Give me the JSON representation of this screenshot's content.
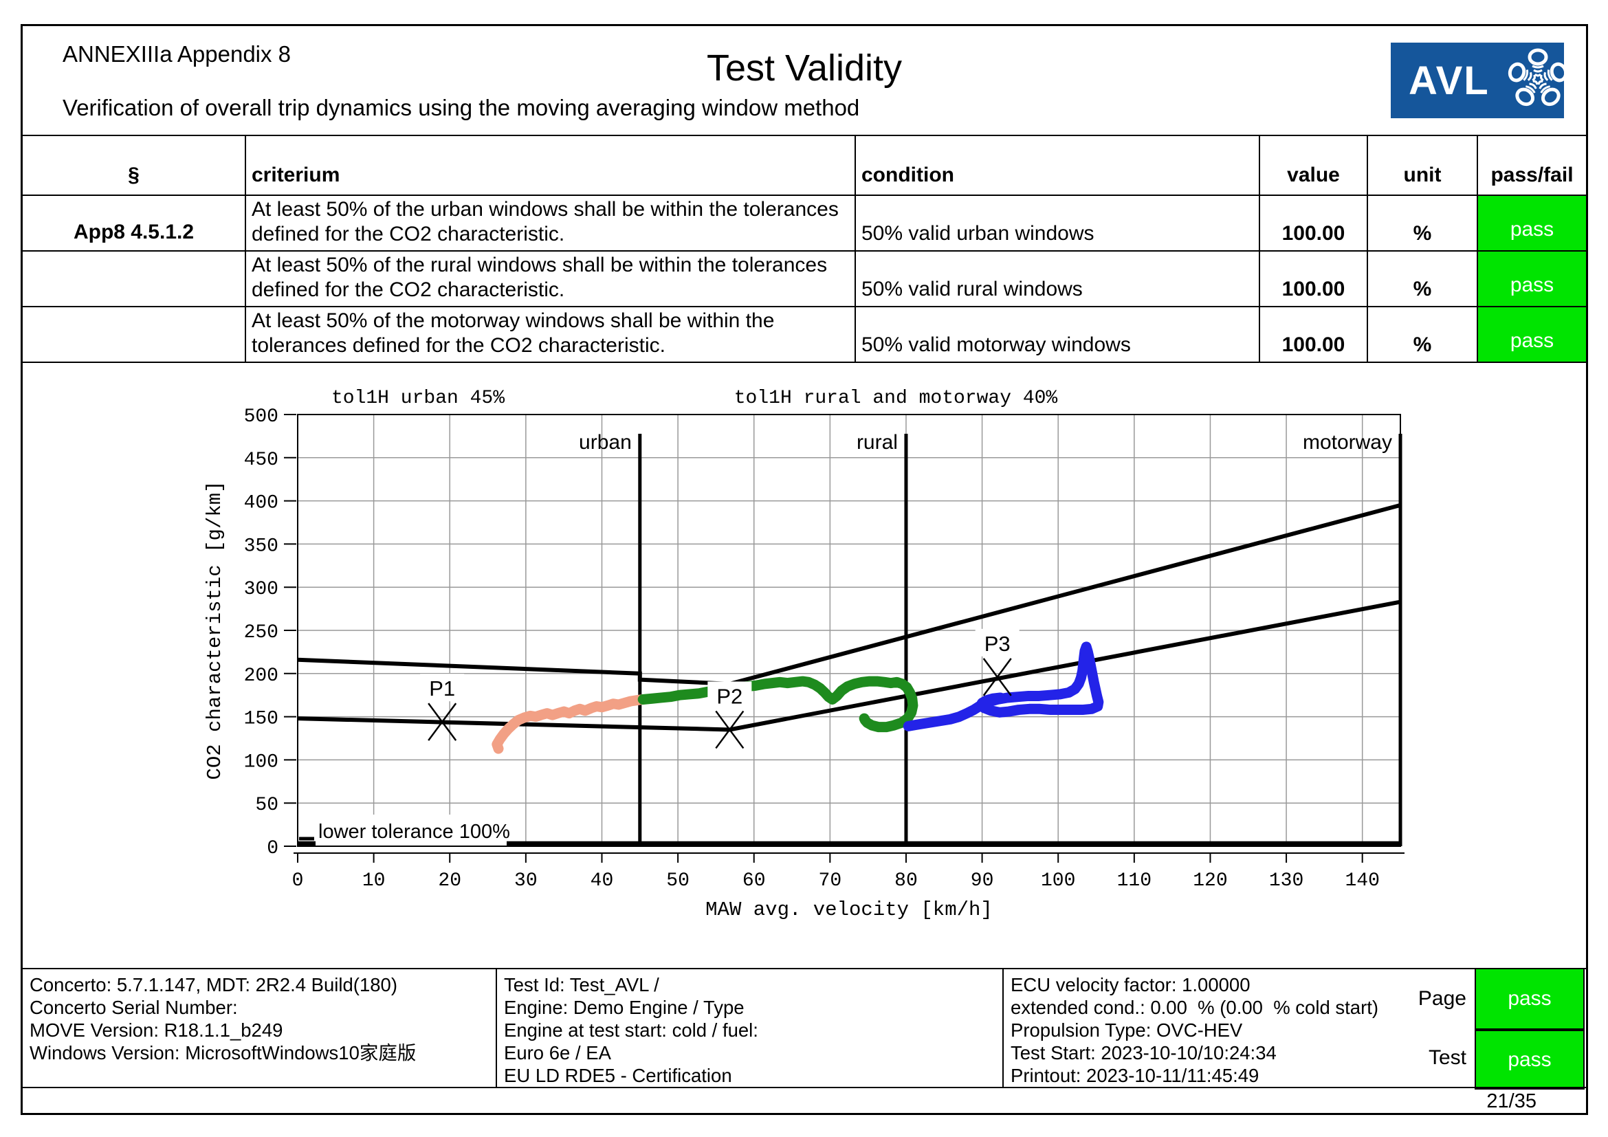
{
  "header": {
    "appendix": "ANNEXIIIa Appendix 8",
    "title": "Test Validity",
    "subtitle": "Verification of overall trip dynamics using the moving averaging window method",
    "logo_text": "AVL",
    "logo_color": "#15569B"
  },
  "table": {
    "columns": [
      "§",
      "criterium",
      "condition",
      "value",
      "unit",
      "pass/fail"
    ],
    "rows": [
      {
        "section": "App8 4.5.1.2",
        "criterium": "At least 50% of the urban windows shall be within the tolerances defined for the CO2 characteristic.",
        "condition": "50% valid urban windows",
        "value": "100.00",
        "unit": "%",
        "result": "pass"
      },
      {
        "section": "",
        "criterium": "At least 50% of the rural windows shall be within the tolerances defined for the CO2 characteristic.",
        "condition": "50% valid rural windows",
        "value": "100.00",
        "unit": "%",
        "result": "pass"
      },
      {
        "section": "",
        "criterium": "At least 50% of the motorway windows shall be within the tolerances defined for the CO2 characteristic.",
        "condition": "50% valid motorway windows",
        "value": "100.00",
        "unit": "%",
        "result": "pass"
      }
    ]
  },
  "chart_data": {
    "type": "scatter",
    "title_left": "tol1H urban 45%",
    "title_right": "tol1H rural and motorway 40%",
    "xlabel": "MAW avg. velocity [km/h]",
    "ylabel": "CO2 characteristic [g/km]",
    "xlim": [
      0,
      145
    ],
    "ylim": [
      0,
      500
    ],
    "xticks": [
      0,
      10,
      20,
      30,
      40,
      50,
      60,
      70,
      80,
      90,
      100,
      110,
      120,
      130,
      140
    ],
    "yticks": [
      0,
      50,
      100,
      150,
      200,
      250,
      300,
      350,
      400,
      450,
      500
    ],
    "grid": true,
    "boundaries": [
      {
        "x": 45,
        "label": "urban"
      },
      {
        "x": 80,
        "label": "rural"
      },
      {
        "x": 145,
        "label": "motorway"
      }
    ],
    "tolerance_upper": [
      [
        0,
        216
      ],
      [
        45,
        200
      ],
      [
        45,
        193
      ],
      [
        56.8,
        188
      ],
      [
        145,
        395
      ]
    ],
    "tolerance_lower": [
      [
        0,
        148
      ],
      [
        56.8,
        135
      ],
      [
        145,
        283
      ]
    ],
    "baseline_y": 3,
    "lower_tolerance_label": "lower tolerance 100%",
    "markers": [
      {
        "label": "P1",
        "x": 19,
        "y": 144
      },
      {
        "label": "P2",
        "x": 56.8,
        "y": 135
      },
      {
        "label": "P3",
        "x": 92,
        "y": 196
      }
    ],
    "series": [
      {
        "name": "urban",
        "color": "#F2A085",
        "points": [
          [
            26.4,
            113
          ],
          [
            26.2,
            118
          ],
          [
            26.6,
            124
          ],
          [
            27.1,
            130
          ],
          [
            27.7,
            136
          ],
          [
            28.3,
            141
          ],
          [
            29,
            146
          ],
          [
            29.8,
            149
          ],
          [
            30.6,
            151
          ],
          [
            31.3,
            150
          ],
          [
            32,
            152
          ],
          [
            32.8,
            154
          ],
          [
            33.5,
            152
          ],
          [
            34.2,
            154
          ],
          [
            35,
            156
          ],
          [
            35.7,
            154
          ],
          [
            36.4,
            157
          ],
          [
            37.1,
            159
          ],
          [
            37.8,
            157
          ],
          [
            38.6,
            160
          ],
          [
            39.3,
            162
          ],
          [
            40,
            161
          ],
          [
            40.8,
            163
          ],
          [
            41.5,
            165
          ],
          [
            42.2,
            164
          ],
          [
            43,
            166
          ],
          [
            43.8,
            168
          ],
          [
            44.6,
            169
          ],
          [
            45.4,
            170
          ]
        ]
      },
      {
        "name": "rural",
        "color": "#1E8B1E",
        "points": [
          [
            45.4,
            170
          ],
          [
            46.6,
            171
          ],
          [
            47.8,
            172
          ],
          [
            49,
            173
          ],
          [
            50.2,
            175
          ],
          [
            51.5,
            176
          ],
          [
            52.8,
            177
          ],
          [
            54,
            179
          ],
          [
            55.2,
            180
          ],
          [
            56.5,
            182
          ],
          [
            57.8,
            183
          ],
          [
            59,
            185
          ],
          [
            60.2,
            186
          ],
          [
            61.4,
            188
          ],
          [
            62.4,
            189
          ],
          [
            63.4,
            190
          ],
          [
            64.4,
            189
          ],
          [
            65.4,
            190
          ],
          [
            66.4,
            191
          ],
          [
            67.2,
            190
          ],
          [
            68,
            187
          ],
          [
            68.7,
            183
          ],
          [
            69.3,
            178
          ],
          [
            69.8,
            173
          ],
          [
            70.3,
            170
          ],
          [
            70.9,
            174
          ],
          [
            71.5,
            180
          ],
          [
            72.3,
            185
          ],
          [
            73.2,
            188
          ],
          [
            74.2,
            190
          ],
          [
            75.2,
            191
          ],
          [
            76.2,
            191
          ],
          [
            77.2,
            190
          ],
          [
            78,
            189
          ],
          [
            78.8,
            190
          ],
          [
            79.5,
            188
          ],
          [
            80.1,
            184
          ],
          [
            80.5,
            178
          ],
          [
            80.8,
            171
          ],
          [
            80.9,
            163
          ],
          [
            80.7,
            155
          ],
          [
            80.2,
            148
          ],
          [
            79.4,
            143
          ],
          [
            78.4,
            140
          ],
          [
            77.4,
            138
          ],
          [
            76.4,
            138
          ],
          [
            75.5,
            140
          ],
          [
            74.9,
            143
          ],
          [
            74.6,
            146
          ],
          [
            74.5,
            148
          ]
        ]
      },
      {
        "name": "motorway",
        "color": "#2323E8",
        "points": [
          [
            80.3,
            139
          ],
          [
            81.6,
            141
          ],
          [
            83,
            143
          ],
          [
            84.4,
            145
          ],
          [
            85.8,
            147
          ],
          [
            87,
            150
          ],
          [
            88,
            154
          ],
          [
            88.9,
            158
          ],
          [
            89.8,
            163
          ],
          [
            90.8,
            167
          ],
          [
            92,
            170
          ],
          [
            93.3,
            172
          ],
          [
            94.7,
            173
          ],
          [
            96.1,
            174
          ],
          [
            97.5,
            174
          ],
          [
            98.9,
            175
          ],
          [
            100.2,
            176
          ],
          [
            101.4,
            178
          ],
          [
            102.2,
            182
          ],
          [
            102.7,
            188
          ],
          [
            103,
            195
          ],
          [
            103.2,
            203
          ],
          [
            103.3,
            211
          ],
          [
            103.4,
            219
          ],
          [
            103.5,
            226
          ],
          [
            103.7,
            231
          ],
          [
            103.9,
            225
          ],
          [
            104.1,
            217
          ],
          [
            104.3,
            208
          ],
          [
            104.5,
            199
          ],
          [
            104.7,
            190
          ],
          [
            104.9,
            182
          ],
          [
            105.1,
            174
          ],
          [
            105.3,
            167
          ],
          [
            105.2,
            162
          ],
          [
            104.4,
            159
          ],
          [
            103.2,
            158
          ],
          [
            101.8,
            158
          ],
          [
            100.4,
            158
          ],
          [
            99,
            158
          ],
          [
            97.6,
            159
          ],
          [
            96.2,
            159
          ],
          [
            94.8,
            158
          ],
          [
            93.5,
            156
          ],
          [
            92.3,
            155
          ],
          [
            91.2,
            157
          ],
          [
            90.3,
            160
          ],
          [
            89.8,
            163
          ],
          [
            90,
            166
          ],
          [
            90.6,
            169
          ],
          [
            91.4,
            171
          ],
          [
            92.4,
            172
          ]
        ]
      }
    ]
  },
  "footer": {
    "left_lines": [
      "Concerto: 5.7.1.147, MDT: 2R2.4 Build(180)",
      "Concerto Serial Number:",
      "MOVE Version: R18.1.1_b249",
      "Windows Version: MicrosoftWindows10家庭版"
    ],
    "mid_lines": [
      "Test Id: Test_AVL /",
      "Engine: Demo Engine / Type",
      "Engine at test start: cold / fuel:",
      "Euro 6e / EA",
      "EU LD RDE5 - Certification"
    ],
    "right_lines": [
      "ECU velocity factor: 1.00000",
      "extended cond.: 0.00  % (0.00  % cold start)",
      "Propulsion Type: OVC-HEV",
      "Test Start: 2023-10-10/10:24:34",
      "Printout: 2023-10-11/11:45:49"
    ],
    "page_label": "Page",
    "test_label": "Test",
    "page_result": "pass",
    "test_result": "pass",
    "page_number": "21/35"
  },
  "colors": {
    "pass_green": "#00E400",
    "logo_blue": "#15569B",
    "trace_urban": "#F2A085",
    "trace_rural": "#1E8B1E",
    "trace_motorway": "#2323E8",
    "grid": "#999999"
  }
}
